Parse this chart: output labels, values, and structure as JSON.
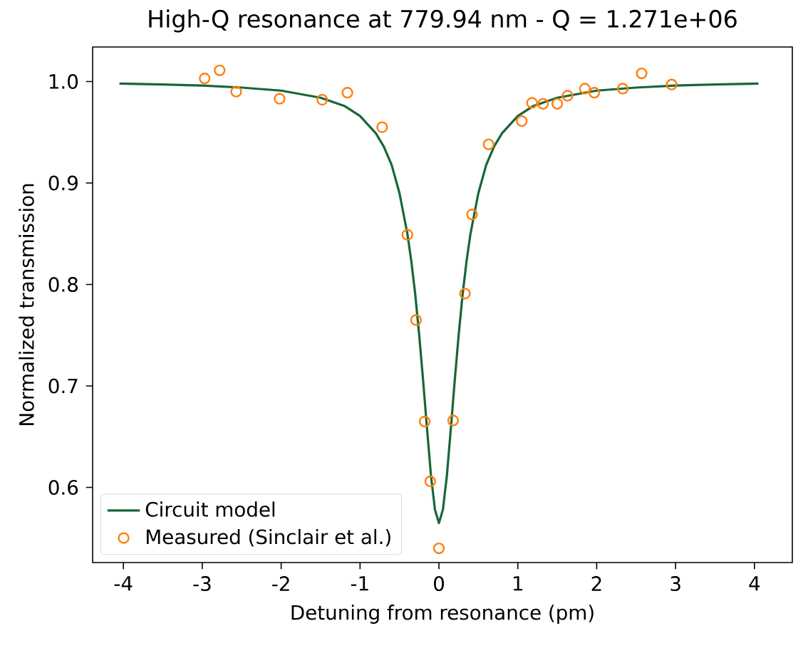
{
  "chart_data": {
    "type": "line",
    "title": "High-Q resonance at 779.94 nm   -   Q = 1.271e+06",
    "xlabel": "Detuning from resonance (pm)",
    "ylabel": "Normalized transmission",
    "xlim": [
      -4.39,
      4.48
    ],
    "ylim": [
      0.526,
      1.034
    ],
    "xticks": [
      -4,
      -3,
      -2,
      -1,
      0,
      1,
      2,
      3,
      4
    ],
    "yticks": [
      0.6,
      0.7,
      0.8,
      0.9,
      {
        "value": 1.0,
        "label": "1.0"
      }
    ],
    "legend": "bottom left",
    "grid": false,
    "series": [
      {
        "name": "Circuit model",
        "color": "#17663a",
        "marker": "none",
        "line_style": "solid",
        "x": [
          -4.05,
          -3.5,
          -3,
          -2.5,
          -2,
          -1.5,
          -1.2,
          -1,
          -0.8,
          -0.7,
          -0.6,
          -0.5,
          -0.4,
          -0.35,
          -0.3,
          -0.25,
          -0.2,
          -0.15,
          -0.1,
          -0.05,
          0,
          0.05,
          0.1,
          0.15,
          0.2,
          0.25,
          0.3,
          0.35,
          0.4,
          0.5,
          0.6,
          0.7,
          0.8,
          1,
          1.2,
          1.5,
          2,
          2.5,
          3,
          3.5,
          4.05
        ],
        "values": [
          0.998,
          0.997,
          0.996,
          0.994,
          0.991,
          0.984,
          0.976,
          0.966,
          0.949,
          0.936,
          0.918,
          0.89,
          0.85,
          0.823,
          0.79,
          0.75,
          0.705,
          0.657,
          0.611,
          0.578,
          0.565,
          0.578,
          0.611,
          0.657,
          0.705,
          0.75,
          0.79,
          0.823,
          0.85,
          0.89,
          0.918,
          0.936,
          0.949,
          0.966,
          0.976,
          0.984,
          0.991,
          0.994,
          0.996,
          0.997,
          0.998
        ]
      },
      {
        "name": "Measured (Sinclair et al.)",
        "type": "scatter",
        "color": "#ff7f0e",
        "marker": "circle",
        "x": [
          -2.97,
          -2.78,
          -2.57,
          -2.02,
          -1.48,
          -1.16,
          -0.72,
          -0.4,
          -0.29,
          -0.18,
          -0.11,
          0,
          0.18,
          0.33,
          0.42,
          0.63,
          1.05,
          1.18,
          1.32,
          1.5,
          1.63,
          1.85,
          1.97,
          2.33,
          2.57,
          2.95
        ],
        "values": [
          1.003,
          1.011,
          0.99,
          0.983,
          0.982,
          0.989,
          0.955,
          0.849,
          0.765,
          0.665,
          0.606,
          0.54,
          0.666,
          0.791,
          0.869,
          0.938,
          0.961,
          0.979,
          0.978,
          0.978,
          0.986,
          0.993,
          0.989,
          0.993,
          1.008,
          0.997
        ]
      }
    ]
  }
}
